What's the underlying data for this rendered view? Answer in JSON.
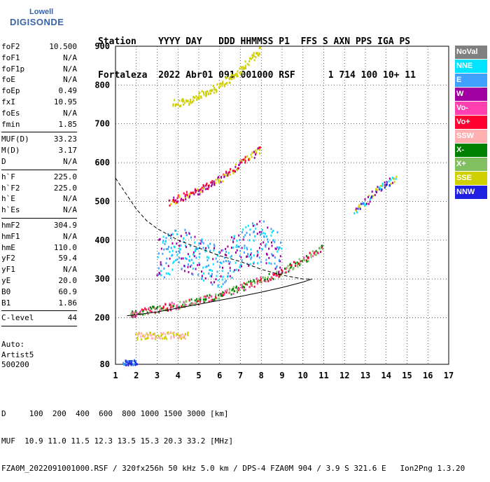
{
  "logo": {
    "top": "Lowell",
    "bottom": "DIGISONDE"
  },
  "header": {
    "line1": "Station    YYYY DAY   DDD HHMMSS P1  FFS S AXN PPS IGA PS",
    "line2": "Fortaleza  2022 Abr01 091 001000 RSF      1 714 100 10+ 11"
  },
  "params": {
    "group1": [
      {
        "label": "foF2",
        "value": "10.500"
      },
      {
        "label": "foF1",
        "value": "N/A"
      },
      {
        "label": "foF1p",
        "value": "N/A"
      },
      {
        "label": "foE",
        "value": "N/A"
      },
      {
        "label": "foEp",
        "value": "0.49"
      },
      {
        "label": "fxI",
        "value": "10.95"
      },
      {
        "label": "foEs",
        "value": "N/A"
      },
      {
        "label": "fmin",
        "value": "1.85"
      }
    ],
    "group2": [
      {
        "label": "MUF(D)",
        "value": "33.23"
      },
      {
        "label": "M(D)",
        "value": "3.17"
      },
      {
        "label": "D",
        "value": "N/A"
      }
    ],
    "group3": [
      {
        "label": "h`F",
        "value": "225.0"
      },
      {
        "label": "h`F2",
        "value": "225.0"
      },
      {
        "label": "h`E",
        "value": "N/A"
      },
      {
        "label": "h`Es",
        "value": "N/A"
      }
    ],
    "group4": [
      {
        "label": "hmF2",
        "value": "304.9"
      },
      {
        "label": "hmF1",
        "value": "N/A"
      },
      {
        "label": "hmE",
        "value": "110.0"
      },
      {
        "label": "yF2",
        "value": "59.4"
      },
      {
        "label": "yF1",
        "value": "N/A"
      },
      {
        "label": "yE",
        "value": "20.0"
      },
      {
        "label": "B0",
        "value": "60.9"
      },
      {
        "label": "B1",
        "value": "1.86"
      }
    ],
    "group5": [
      {
        "label": "C-level",
        "value": "44"
      }
    ]
  },
  "auto": {
    "line1": "Auto:",
    "line2": "Artist5",
    "line3": "500200"
  },
  "legend": [
    {
      "label": "NoVal",
      "color": "#808080"
    },
    {
      "label": "NNE",
      "color": "#00e5ff"
    },
    {
      "label": "E",
      "color": "#3fa0ff"
    },
    {
      "label": "W",
      "color": "#a000a0"
    },
    {
      "label": "Vo-",
      "color": "#ff40b0"
    },
    {
      "label": "Vo+",
      "color": "#ff0030"
    },
    {
      "label": "SSW",
      "color": "#ffb0b0"
    },
    {
      "label": "X-",
      "color": "#008000"
    },
    {
      "label": "X+",
      "color": "#80c060"
    },
    {
      "label": "SSE",
      "color": "#d0d000"
    },
    {
      "label": "NNW",
      "color": "#2020e0"
    }
  ],
  "footer": {
    "line1": "D     100  200  400  600  800 1000 1500 3000 [km]",
    "line2": "MUF  10.9 11.0 11.5 12.3 13.5 15.3 20.3 33.2 [MHz]",
    "line3": "FZA0M_2022091001000.RSF / 320fx256h 50 kHz 5.0 km / DPS-4 FZA0M 904 / 3.9 S 321.6 E   Ion2Png 1.3.20"
  },
  "chart_data": {
    "type": "scatter",
    "xlim": [
      1,
      17
    ],
    "ylim": [
      80,
      900
    ],
    "x_ticks": [
      1,
      2,
      3,
      4,
      5,
      6,
      7,
      8,
      9,
      10,
      11,
      12,
      13,
      14,
      15,
      16,
      17
    ],
    "y_ticks": [
      80,
      200,
      300,
      400,
      500,
      600,
      700,
      800,
      900
    ],
    "grid": true,
    "profile_curve": [
      [
        1.55,
        205
      ],
      [
        2,
        208
      ],
      [
        3,
        215
      ],
      [
        4,
        225
      ],
      [
        5,
        235
      ],
      [
        6,
        245
      ],
      [
        7,
        255
      ],
      [
        8,
        266
      ],
      [
        9,
        278
      ],
      [
        10,
        292
      ],
      [
        10.45,
        300
      ]
    ],
    "muf_curve": [
      [
        1,
        560
      ],
      [
        1.5,
        520
      ],
      [
        2,
        480
      ],
      [
        2.5,
        450
      ],
      [
        3,
        430
      ],
      [
        4,
        400
      ],
      [
        5,
        380
      ],
      [
        6,
        360
      ],
      [
        7,
        345
      ],
      [
        8,
        325
      ],
      [
        9,
        310
      ],
      [
        10,
        300
      ],
      [
        10.45,
        300
      ]
    ],
    "traces": [
      {
        "name": "O2 main",
        "color_ids": [
          "Vo+",
          "Vo-",
          "X-",
          "X+"
        ],
        "points": [
          [
            1.7,
            210
          ],
          [
            2,
            215
          ],
          [
            3,
            225
          ],
          [
            4,
            235
          ],
          [
            5,
            245
          ],
          [
            6,
            260
          ],
          [
            7,
            280
          ],
          [
            8,
            300
          ],
          [
            9,
            320
          ],
          [
            10,
            350
          ],
          [
            11,
            385
          ]
        ]
      },
      {
        "name": "Second echo",
        "color_ids": [
          "SSE",
          "Vo+",
          "W"
        ],
        "points": [
          [
            3.6,
            500
          ],
          [
            4,
            510
          ],
          [
            5,
            530
          ],
          [
            6,
            560
          ],
          [
            7,
            600
          ],
          [
            7.5,
            620
          ],
          [
            8,
            640
          ]
        ]
      },
      {
        "name": "Third echo",
        "color_ids": [
          "SSE"
        ],
        "points": [
          [
            3.8,
            755
          ],
          [
            4.5,
            760
          ],
          [
            5,
            775
          ],
          [
            6,
            800
          ],
          [
            6.5,
            820
          ],
          [
            7,
            840
          ],
          [
            7.5,
            870
          ],
          [
            8,
            895
          ]
        ]
      },
      {
        "name": "Es low",
        "color_ids": [
          "SSW",
          "SSE"
        ],
        "points": [
          [
            2,
            155
          ],
          [
            2.5,
            155
          ],
          [
            3,
            157
          ],
          [
            3.5,
            157
          ],
          [
            4,
            157
          ],
          [
            4.5,
            157
          ]
        ]
      },
      {
        "name": "Bottom band",
        "color_ids": [
          "E",
          "NNW"
        ],
        "points": [
          [
            1.4,
            85
          ],
          [
            1.6,
            85
          ],
          [
            1.8,
            85
          ],
          [
            2,
            85
          ]
        ]
      },
      {
        "name": "Spread cluster",
        "color_ids": [
          "NNE",
          "E",
          "W"
        ],
        "points": [
          [
            3,
            350
          ],
          [
            4,
            380
          ],
          [
            5,
            360
          ],
          [
            6,
            330
          ],
          [
            7,
            380
          ],
          [
            8,
            400
          ],
          [
            9,
            360
          ]
        ]
      },
      {
        "name": "High freq",
        "color_ids": [
          "NNE",
          "W",
          "SSE",
          "NNW"
        ],
        "points": [
          [
            12.5,
            480
          ],
          [
            13,
            500
          ],
          [
            13.5,
            530
          ],
          [
            14,
            550
          ],
          [
            14.5,
            560
          ]
        ]
      }
    ]
  }
}
